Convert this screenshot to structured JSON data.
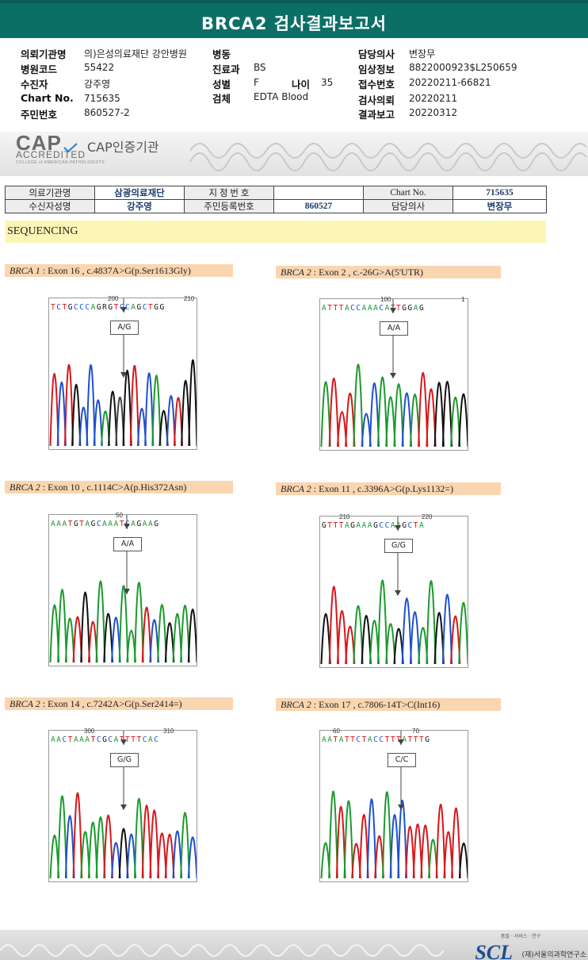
{
  "header": {
    "title": "BRCA2 검사결과보고서"
  },
  "info": {
    "hospital_label": "의뢰기관명",
    "hospital": "의)은성의료재단 강안병원",
    "hosp_code_label": "병원코드",
    "hosp_code": "55422",
    "patient_label": "수진자",
    "patient": "강주영",
    "chart_label": "Chart No.",
    "chart": "715635",
    "rrn_label": "주민번호",
    "rrn": "860527-2",
    "ward_label": "병동",
    "ward": "",
    "dept_label": "진료과",
    "dept": "BS",
    "sex_label": "성별",
    "sex": "F",
    "age_label": "나이",
    "age": "35",
    "specimen_label": "검체",
    "specimen": "EDTA Blood",
    "doctor_label": "담당의사",
    "doctor": "변장무",
    "clinical_label": "임상정보",
    "clinical": "8822000923$L250659",
    "receipt_label": "접수번호",
    "receipt": "20220211-66821",
    "request_label": "검사의뢰",
    "request": "20220211",
    "report_label": "결과보고",
    "report": "20220312"
  },
  "cap": {
    "logo_big": "CAP",
    "logo_acc": "ACCREDITED",
    "logo_small": "COLLEGE of AMERICAN PATHOLOGISTS",
    "text": "CAP인증기관"
  },
  "patient_table": {
    "org_label": "의료기관명",
    "org": "삼광의료재단",
    "designated_label": "지 정 번 호",
    "designated": "",
    "chart_label": "Chart No.",
    "chart": "715635",
    "name_label": "수신자성명",
    "name": "강주영",
    "rrn_label": "주민등록번호",
    "rrn": "860527",
    "doctor_label": "담당의사",
    "doctor": "변장무"
  },
  "sequencing": {
    "title": "SEQUENCING"
  },
  "panels": [
    {
      "gene": "BRCA 1",
      "rest": " : Exon 16 , c.4837A>G(p.Ser1613Gly)",
      "seq": "TCTGCCCAGRGTCCAGCTGG",
      "num1": "200",
      "num2": "210",
      "genotype": "A/G"
    },
    {
      "gene": "BRCA 2",
      "rest": " : Exon 2 , c.-26G>A(5'UTR)",
      "seq": "ATTTACCAAACATTGGAG",
      "num1": "100",
      "num2": "1",
      "genotype": "A/A"
    },
    {
      "gene": "BRCA 2",
      "rest": " : Exon 10 , c.1114C>A(p.His372Asn)",
      "seq": "AAATGTAGCAAATCAGAAG",
      "num1": "50",
      "num2": "",
      "genotype": "A/A"
    },
    {
      "gene": "BRCA 2",
      "rest": " : Exon 11 , c.3396A>G(p.Lys1132=)",
      "seq": "GTTTAGAAAGCCAAGCTA",
      "num1": "210",
      "num2": "220",
      "genotype": "G/G"
    },
    {
      "gene": "BRCA 2",
      "rest": " : Exon 14 , c.7242A>G(p.Ser2414=)",
      "seq": "AACTAAATCGCATTTTCAC",
      "num1": "300",
      "num2": "310",
      "genotype": "G/G"
    },
    {
      "gene": "BRCA 2",
      "rest": " : Exon 17 , c.7806-14T>C(Int16)",
      "seq": "AATATTCTACCTTTATTTG",
      "num1": "60",
      "num2": "70",
      "genotype": "C/C"
    }
  ],
  "footer": {
    "logo": "SCL",
    "tagline": "품질 · 서비스 · 연구",
    "name": "(재)서울의과학연구소"
  },
  "colors": {
    "A": "#1a9a2e",
    "C": "#1f4fd0",
    "G": "#111111",
    "T": "#d8161a"
  }
}
